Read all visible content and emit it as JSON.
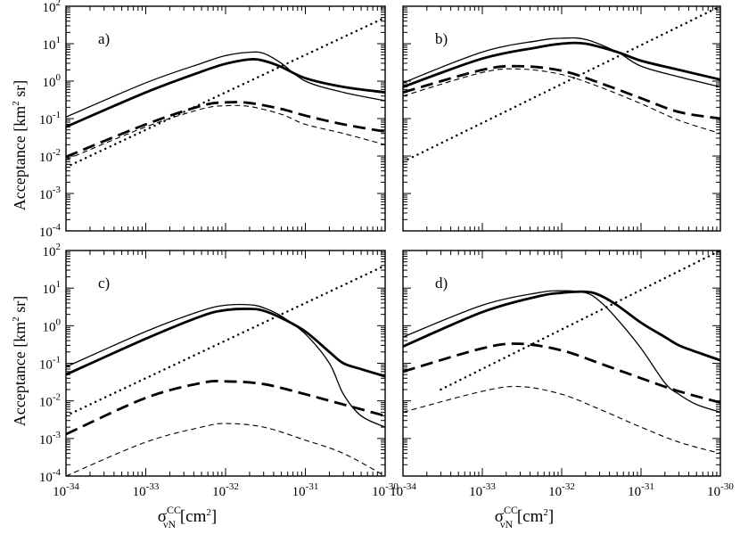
{
  "chart_data": [
    {
      "type": "line",
      "panel_label": "a)",
      "xscale": "log",
      "yscale": "log",
      "xlim": [
        1e-34,
        1e-30
      ],
      "ylim": [
        0.0001,
        100
      ],
      "series": [
        {
          "name": "thin solid",
          "x": [
            1e-34,
            1e-33,
            5e-33,
            1e-32,
            2e-32,
            3e-32,
            5e-32,
            1e-31,
            3e-31,
            1e-30
          ],
          "y": [
            0.11,
            0.9,
            3.0,
            4.8,
            5.9,
            5.5,
            3.0,
            1.0,
            0.5,
            0.3
          ]
        },
        {
          "name": "thick solid",
          "x": [
            1e-34,
            1e-33,
            5e-33,
            1e-32,
            2e-32,
            3e-32,
            5e-32,
            1e-31,
            3e-31,
            1e-30
          ],
          "y": [
            0.06,
            0.5,
            1.8,
            2.9,
            3.8,
            3.5,
            2.4,
            1.2,
            0.7,
            0.5
          ]
        },
        {
          "name": "thick dashed",
          "x": [
            1e-34,
            1e-33,
            5e-33,
            1e-32,
            2e-32,
            5e-32,
            1e-31,
            3e-31,
            1e-30
          ],
          "y": [
            0.0095,
            0.07,
            0.22,
            0.27,
            0.26,
            0.18,
            0.12,
            0.07,
            0.045
          ]
        },
        {
          "name": "thin dashed",
          "x": [
            1e-34,
            1e-33,
            5e-33,
            1e-32,
            2e-32,
            5e-32,
            1e-31,
            3e-31,
            1e-30
          ],
          "y": [
            0.008,
            0.06,
            0.18,
            0.22,
            0.21,
            0.13,
            0.07,
            0.04,
            0.02
          ]
        },
        {
          "name": "dotted",
          "x": [
            1e-34,
            1e-30
          ],
          "y": [
            0.005,
            50
          ]
        }
      ]
    },
    {
      "type": "line",
      "panel_label": "b)",
      "xscale": "log",
      "yscale": "log",
      "xlim": [
        1e-34,
        1e-30
      ],
      "ylim": [
        0.0001,
        100
      ],
      "series": [
        {
          "name": "thin solid",
          "x": [
            1e-34,
            1e-33,
            5e-33,
            1e-32,
            2e-32,
            5e-32,
            1e-31,
            3e-31,
            1e-30
          ],
          "y": [
            0.9,
            6,
            12,
            14,
            13,
            6,
            2.5,
            1.3,
            0.7
          ]
        },
        {
          "name": "thick solid",
          "x": [
            1e-34,
            1e-33,
            5e-33,
            1e-32,
            2e-32,
            5e-32,
            1e-31,
            3e-31,
            1e-30
          ],
          "y": [
            0.7,
            4,
            8,
            10,
            10,
            6,
            3.5,
            2,
            1.1
          ]
        },
        {
          "name": "thick dashed",
          "x": [
            1e-34,
            1e-33,
            3e-33,
            1e-32,
            3e-32,
            1e-31,
            3e-31,
            1e-30
          ],
          "y": [
            0.5,
            2.0,
            2.5,
            1.9,
            0.9,
            0.35,
            0.15,
            0.1
          ]
        },
        {
          "name": "thin dashed",
          "x": [
            1e-34,
            1e-33,
            3e-33,
            1e-32,
            3e-32,
            1e-31,
            3e-31,
            1e-30
          ],
          "y": [
            0.4,
            1.7,
            2.1,
            1.5,
            0.7,
            0.25,
            0.09,
            0.04
          ]
        },
        {
          "name": "dotted",
          "x": [
            1e-34,
            1e-30
          ],
          "y": [
            0.007,
            100
          ]
        }
      ]
    },
    {
      "type": "line",
      "panel_label": "c)",
      "xscale": "log",
      "yscale": "log",
      "xlim": [
        1e-34,
        1e-30
      ],
      "ylim": [
        0.0001,
        100
      ],
      "series": [
        {
          "name": "thin solid",
          "x": [
            1e-34,
            1e-33,
            5e-33,
            1e-32,
            2e-32,
            3e-32,
            5e-32,
            1e-31,
            2e-31,
            3e-31,
            5e-31,
            1e-30
          ],
          "y": [
            0.08,
            0.7,
            2.5,
            3.5,
            3.6,
            3.0,
            1.8,
            0.6,
            0.1,
            0.015,
            0.004,
            0.002
          ]
        },
        {
          "name": "thick solid",
          "x": [
            1e-34,
            1e-33,
            5e-33,
            1e-32,
            2e-32,
            3e-32,
            5e-32,
            1e-31,
            2e-31,
            3e-31,
            5e-31,
            1e-30
          ],
          "y": [
            0.05,
            0.45,
            1.8,
            2.6,
            2.8,
            2.5,
            1.6,
            0.7,
            0.2,
            0.1,
            0.07,
            0.045
          ]
        },
        {
          "name": "thick dashed",
          "x": [
            1e-34,
            1e-33,
            5e-33,
            1e-32,
            3e-32,
            1e-31,
            3e-31,
            1e-30
          ],
          "y": [
            0.0013,
            0.012,
            0.03,
            0.033,
            0.028,
            0.015,
            0.008,
            0.004
          ]
        },
        {
          "name": "thin dashed",
          "x": [
            1e-34,
            1e-33,
            5e-33,
            1e-32,
            3e-32,
            1e-31,
            3e-31,
            1e-30
          ],
          "y": [
            0.0001,
            0.0008,
            0.002,
            0.0025,
            0.002,
            0.0009,
            0.0004,
            0.0001
          ]
        },
        {
          "name": "dotted",
          "x": [
            1e-34,
            1e-30
          ],
          "y": [
            0.004,
            40
          ]
        }
      ]
    },
    {
      "type": "line",
      "panel_label": "d)",
      "xscale": "log",
      "yscale": "log",
      "xlim": [
        1e-34,
        1e-30
      ],
      "ylim": [
        0.0001,
        100
      ],
      "series": [
        {
          "name": "thin solid",
          "x": [
            1e-34,
            1e-33,
            5e-33,
            1e-32,
            2e-32,
            3e-32,
            5e-32,
            1e-31,
            2e-31,
            3e-31,
            5e-31,
            1e-30
          ],
          "y": [
            0.5,
            3.5,
            7.5,
            8.5,
            7.5,
            4.5,
            1.5,
            0.25,
            0.03,
            0.015,
            0.008,
            0.005
          ]
        },
        {
          "name": "thick solid",
          "x": [
            1e-34,
            1e-33,
            5e-33,
            1e-32,
            2e-32,
            3e-32,
            5e-32,
            1e-31,
            2e-31,
            3e-31,
            5e-31,
            1e-30
          ],
          "y": [
            0.28,
            2.3,
            6,
            7.5,
            8,
            6.5,
            3.5,
            1.2,
            0.5,
            0.3,
            0.2,
            0.12
          ]
        },
        {
          "name": "thick dashed",
          "x": [
            1e-34,
            1e-33,
            3e-33,
            1e-32,
            3e-32,
            1e-31,
            3e-31,
            1e-30
          ],
          "y": [
            0.06,
            0.25,
            0.33,
            0.22,
            0.1,
            0.04,
            0.018,
            0.009
          ]
        },
        {
          "name": "thin dashed",
          "x": [
            1e-34,
            1e-33,
            3e-33,
            1e-32,
            3e-32,
            1e-31,
            3e-31,
            1e-30
          ],
          "y": [
            0.005,
            0.018,
            0.024,
            0.015,
            0.006,
            0.002,
            0.0008,
            0.0004
          ]
        },
        {
          "name": "dotted",
          "x": [
            3e-34,
            1e-30
          ],
          "y": [
            0.02,
            100
          ]
        }
      ]
    }
  ],
  "labels": {
    "ylabel": "Acceptance [km",
    "ylabel_sup": "2",
    "ylabel_tail": " sr]",
    "xlabel_sigma": "σ",
    "xlabel_sup": "CC",
    "xlabel_sub": "νN",
    "xlabel_tail": " [cm",
    "xlabel_sup2": "2",
    "xlabel_end": "]",
    "ytick_base": "10",
    "ytick_exps": [
      "2",
      "1",
      "0",
      "-1",
      "-2",
      "-3",
      "-4"
    ],
    "xtick_base": "10",
    "xtick_exps": [
      "-34",
      "-33",
      "-32",
      "-31",
      "-30"
    ]
  }
}
